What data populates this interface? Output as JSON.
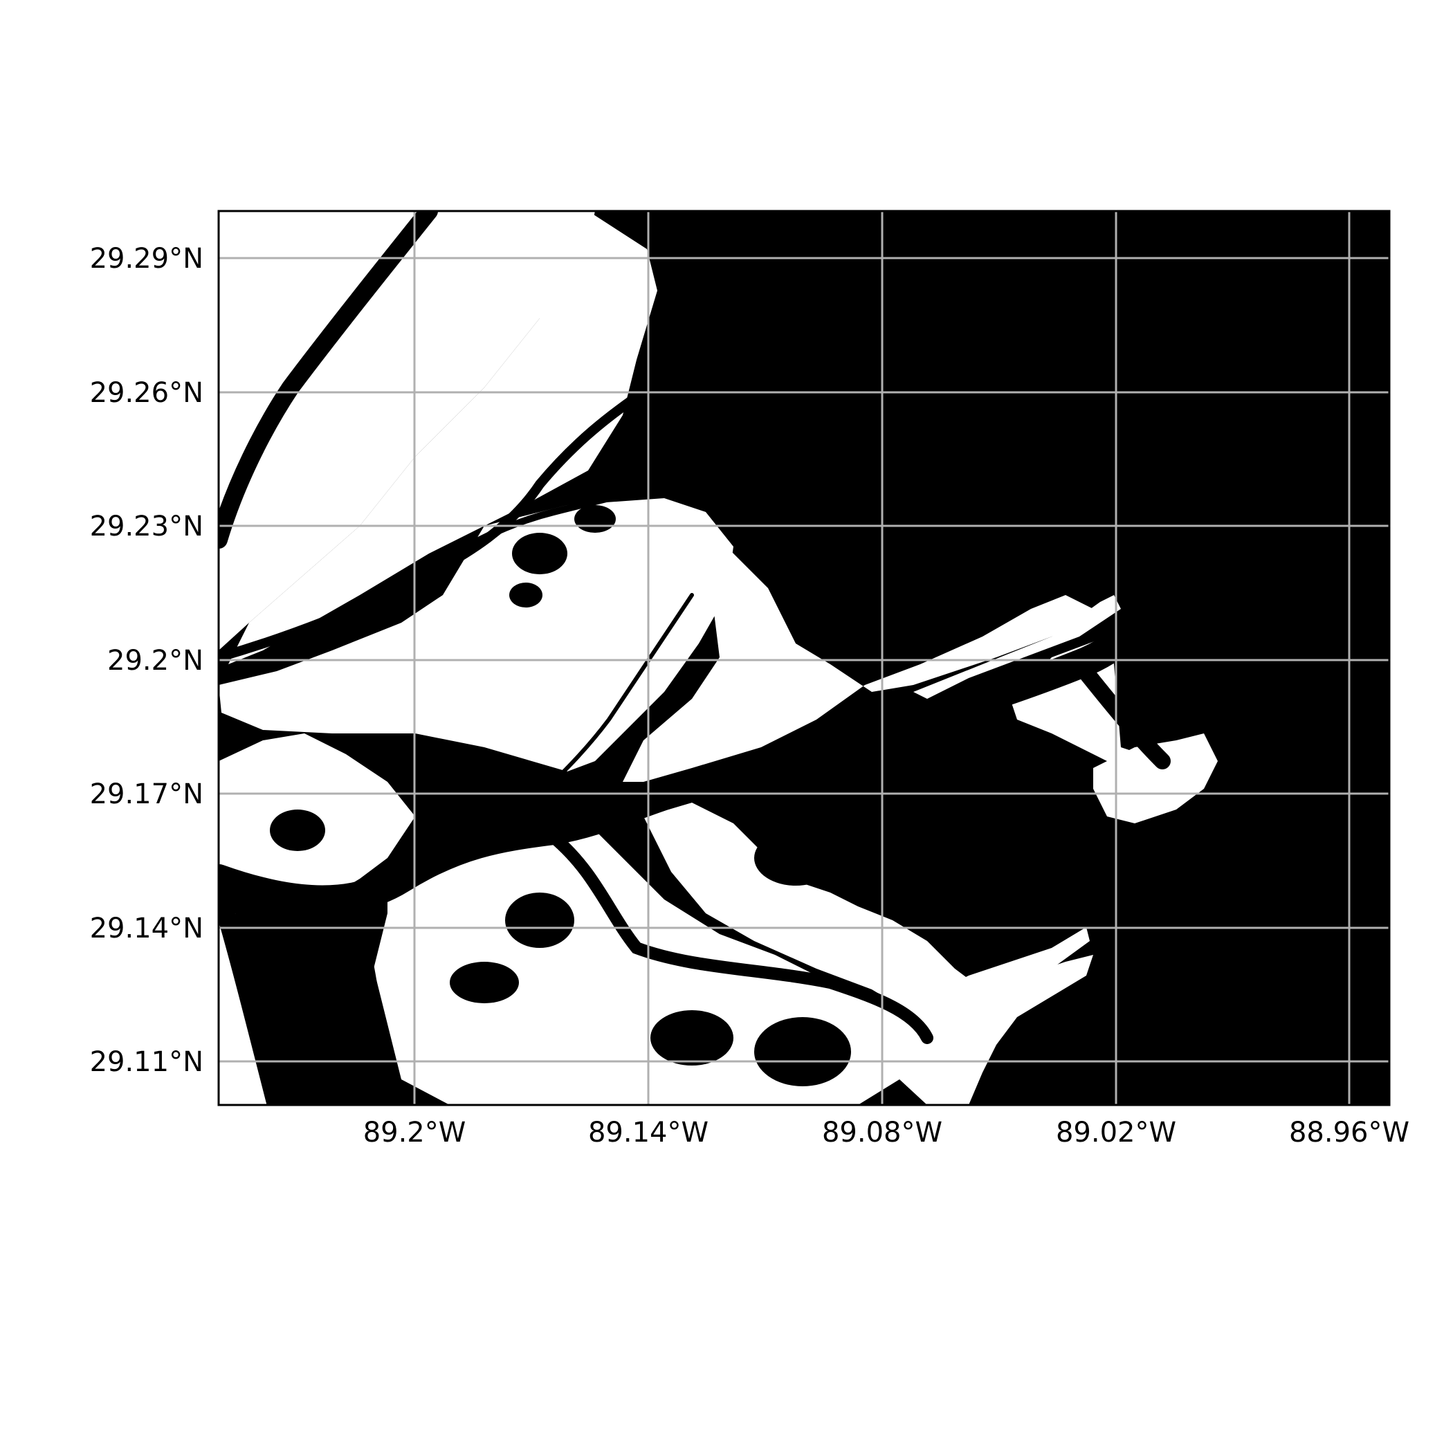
{
  "map": {
    "colors": {
      "water": "#000000",
      "land": "#ffffff",
      "gridlines": "#b0b0b0",
      "frame": "#000000",
      "text": "#000000"
    },
    "grid": true,
    "longitude_ticks": [
      {
        "label": "89.2°W",
        "value": -89.2
      },
      {
        "label": "89.14°W",
        "value": -89.14
      },
      {
        "label": "89.08°W",
        "value": -89.08
      },
      {
        "label": "89.02°W",
        "value": -89.02
      },
      {
        "label": "88.96°W",
        "value": -88.96
      }
    ],
    "latitude_ticks": [
      {
        "label": "29.29°N",
        "value": 29.29
      },
      {
        "label": "29.26°N",
        "value": 29.26
      },
      {
        "label": "29.23°N",
        "value": 29.23
      },
      {
        "label": "29.2°N",
        "value": 29.2
      },
      {
        "label": "29.17°N",
        "value": 29.17
      },
      {
        "label": "29.14°N",
        "value": 29.14
      },
      {
        "label": "29.11°N",
        "value": 29.11
      }
    ]
  }
}
